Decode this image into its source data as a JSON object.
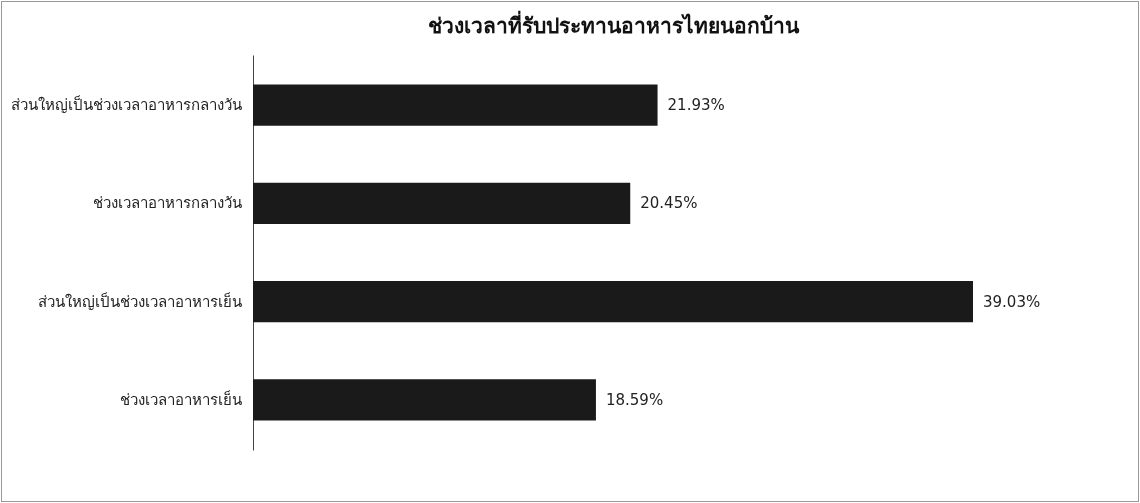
{
  "chart_data": {
    "type": "bar",
    "orientation": "horizontal",
    "title": "ช่วงเวลาที่รับประทานอาหารไทยนอกบ้าน",
    "categories": [
      "ส่วนใหญ่เป็นช่วงเวลาอาหารกลางวัน",
      "ช่วงเวลาอาหารกลางวัน",
      "ส่วนใหญ่เป็นช่วงเวลาอาหารเย็น",
      "ช่วงเวลาอาหารเย็น"
    ],
    "values": [
      21.93,
      20.45,
      39.03,
      18.59
    ],
    "value_labels": [
      "21.93%",
      "20.45%",
      "39.03%",
      "18.59%"
    ],
    "color": "#1a1a1a",
    "tick_labels": "y"
  }
}
